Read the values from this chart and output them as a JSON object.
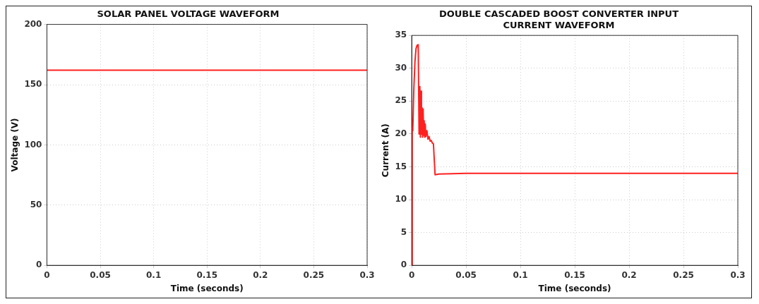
{
  "chart_data": [
    {
      "type": "line",
      "title": "SOLAR PANEL VOLTAGE WAVEFORM",
      "xlabel": "Time (seconds)",
      "ylabel": "Voltage (V)",
      "series": [
        {
          "color": "#ff2020",
          "x": [
            0,
            0.3
          ],
          "values": [
            162,
            162
          ]
        }
      ],
      "xlim": [
        0,
        0.3
      ],
      "xticks": [
        0,
        0.05,
        0.1,
        0.15,
        0.2,
        0.25,
        0.3
      ],
      "ylim": [
        0,
        200
      ],
      "yticks": [
        0,
        50,
        100,
        150,
        200
      ],
      "grid": true,
      "legend": false,
      "marker": "none",
      "line_style": "solid"
    },
    {
      "type": "line",
      "title": "DOUBLE CASCADED BOOST CONVERTER INPUT CURRENT WAVEFORM",
      "xlabel": "Time (seconds)",
      "ylabel": "Current (A)",
      "series": [
        {
          "color": "#ff2020",
          "x": [
            0,
            0.0005,
            0.001,
            0.002,
            0.003,
            0.004,
            0.005,
            0.006,
            0.0068,
            0.0075,
            0.008,
            0.0085,
            0.009,
            0.0095,
            0.01,
            0.0105,
            0.011,
            0.0115,
            0.012,
            0.0125,
            0.013,
            0.014,
            0.015,
            0.016,
            0.017,
            0.018,
            0.019,
            0.02,
            0.0215,
            0.025,
            0.05,
            0.1,
            0.2,
            0.3
          ],
          "values": [
            0,
            21,
            20.5,
            27,
            31,
            33,
            33.5,
            33.6,
            20,
            27.2,
            19.5,
            26.5,
            20,
            24,
            19.5,
            23.8,
            19.8,
            22,
            19.5,
            21.5,
            19.6,
            20.5,
            19.2,
            19.6,
            18.9,
            19,
            18.6,
            18.5,
            13.8,
            13.9,
            14,
            14,
            14,
            14
          ]
        }
      ],
      "xlim": [
        0,
        0.3
      ],
      "xticks": [
        0,
        0.05,
        0.1,
        0.15,
        0.2,
        0.25,
        0.3
      ],
      "ylim": [
        0,
        35
      ],
      "yticks": [
        0,
        5,
        10,
        15,
        20,
        25,
        30,
        35
      ],
      "grid": true,
      "legend": false,
      "marker": "none",
      "line_style": "solid"
    }
  ]
}
